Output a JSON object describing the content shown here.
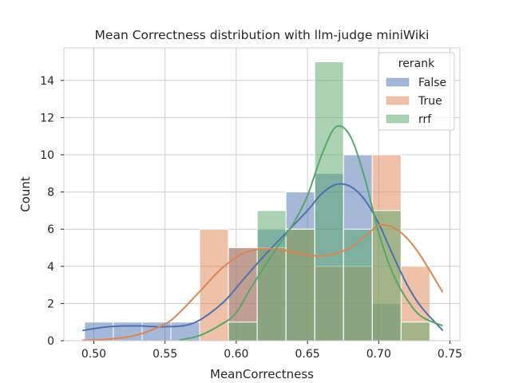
{
  "chart_data": {
    "type": "bar",
    "title": "Mean Correctness distribution with llm-judge miniWiki",
    "xlabel": "MeanCorrectness",
    "ylabel": "Count",
    "xlim": [
      0.479,
      0.757
    ],
    "ylim": [
      0,
      15.75
    ],
    "xticks": [
      "0.50",
      "0.55",
      "0.60",
      "0.65",
      "0.70",
      "0.75"
    ],
    "xtick_values": [
      0.5,
      0.55,
      0.6,
      0.65,
      0.7,
      0.75
    ],
    "yticks": [
      "0",
      "2",
      "4",
      "6",
      "8",
      "10",
      "12",
      "14"
    ],
    "ytick_values": [
      0,
      2,
      4,
      6,
      8,
      10,
      12,
      14
    ],
    "grid": true,
    "bin_edges": [
      0.4935,
      0.5137,
      0.5339,
      0.5541,
      0.5743,
      0.5945,
      0.6147,
      0.6349,
      0.6551,
      0.6753,
      0.6955,
      0.7157,
      0.7359
    ],
    "series": [
      {
        "name": "False",
        "color": "#4c72b0",
        "values": [
          1,
          1,
          1,
          1,
          0,
          5,
          6,
          8,
          9,
          10,
          2,
          0
        ],
        "kde": [
          [
            0.492,
            0.55
          ],
          [
            0.51,
            0.75
          ],
          [
            0.53,
            0.8
          ],
          [
            0.55,
            0.75
          ],
          [
            0.57,
            0.95
          ],
          [
            0.59,
            2.0
          ],
          [
            0.605,
            3.3
          ],
          [
            0.62,
            4.6
          ],
          [
            0.635,
            5.8
          ],
          [
            0.65,
            7.0
          ],
          [
            0.66,
            7.9
          ],
          [
            0.67,
            8.4
          ],
          [
            0.68,
            8.3
          ],
          [
            0.69,
            7.6
          ],
          [
            0.7,
            6.3
          ],
          [
            0.71,
            4.6
          ],
          [
            0.72,
            3.0
          ],
          [
            0.73,
            1.8
          ],
          [
            0.745,
            0.55
          ]
        ]
      },
      {
        "name": "True",
        "color": "#dd8452",
        "values": [
          0,
          0,
          0,
          0,
          6,
          5,
          5,
          6,
          4,
          4,
          10,
          4
        ],
        "kde": [
          [
            0.492,
            0.02
          ],
          [
            0.51,
            0.08
          ],
          [
            0.53,
            0.3
          ],
          [
            0.55,
            0.9
          ],
          [
            0.56,
            1.5
          ],
          [
            0.575,
            2.7
          ],
          [
            0.59,
            3.9
          ],
          [
            0.605,
            4.7
          ],
          [
            0.62,
            4.95
          ],
          [
            0.635,
            4.85
          ],
          [
            0.65,
            4.6
          ],
          [
            0.665,
            4.6
          ],
          [
            0.68,
            5.0
          ],
          [
            0.69,
            5.6
          ],
          [
            0.7,
            6.2
          ],
          [
            0.71,
            6.1
          ],
          [
            0.72,
            5.5
          ],
          [
            0.73,
            4.5
          ],
          [
            0.745,
            2.6
          ]
        ]
      },
      {
        "name": "rrf",
        "color": "#55a868",
        "values": [
          0,
          0,
          0,
          0,
          0,
          1,
          7,
          6,
          15,
          6,
          7,
          1
        ],
        "kde": [
          [
            0.56,
            0.03
          ],
          [
            0.575,
            0.3
          ],
          [
            0.59,
            0.9
          ],
          [
            0.6,
            1.5
          ],
          [
            0.61,
            2.8
          ],
          [
            0.625,
            4.6
          ],
          [
            0.64,
            6.3
          ],
          [
            0.65,
            7.8
          ],
          [
            0.66,
            10.0
          ],
          [
            0.67,
            11.5
          ],
          [
            0.68,
            11.0
          ],
          [
            0.69,
            8.8
          ],
          [
            0.7,
            5.8
          ],
          [
            0.71,
            3.6
          ],
          [
            0.72,
            2.2
          ],
          [
            0.73,
            1.3
          ],
          [
            0.745,
            0.8
          ]
        ]
      }
    ],
    "legend": {
      "title": "rerank",
      "placement": "top-right",
      "entries": [
        "False",
        "True",
        "rrf"
      ]
    }
  }
}
